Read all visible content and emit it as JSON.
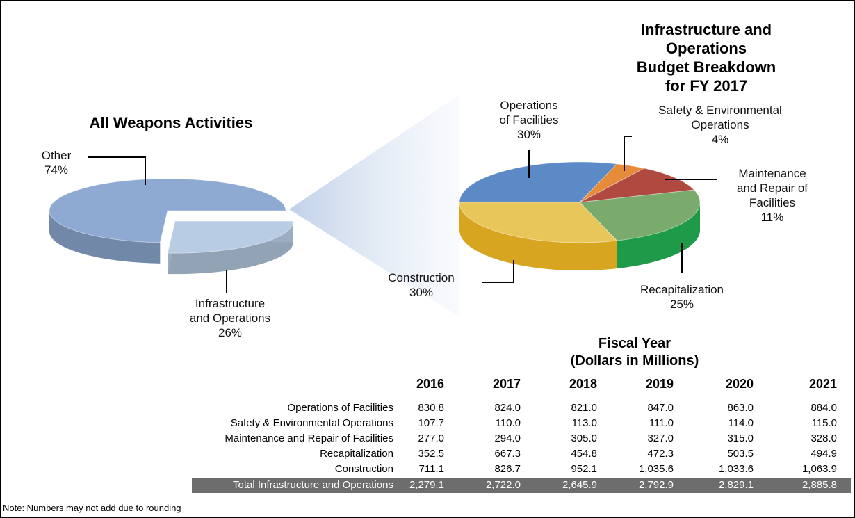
{
  "chart_data": [
    {
      "type": "pie",
      "title": "All Weapons Activities",
      "categories": [
        "Other",
        "Infrastructure\nand Operations"
      ],
      "values": [
        74,
        26
      ],
      "value_labels": [
        "74%",
        "26%"
      ],
      "colors": [
        "#8eaad3",
        "#b8cce4"
      ],
      "explode": [
        0,
        1
      ]
    },
    {
      "type": "pie",
      "title": "Infrastructure and Operations\nBudget Breakdown\nfor FY 2017",
      "categories": [
        "Operations\nof Facilities",
        "Safety & Environmental\nOperations",
        "Maintenance\nand Repair of\nFacilities",
        "Recapitalization",
        "Construction"
      ],
      "values": [
        30,
        4,
        11,
        25,
        30
      ],
      "value_labels": [
        "30%",
        "4%",
        "11%",
        "25%",
        "30%"
      ],
      "colors": [
        "#5b8ac6",
        "#e58b3a",
        "#b04a40",
        "#7aab6c",
        "#e8c65a"
      ],
      "explode": [
        0,
        0,
        0,
        0,
        0
      ]
    }
  ],
  "table": {
    "title": "Fiscal Year\n(Dollars in Millions)",
    "columns": [
      "2016",
      "2017",
      "2018",
      "2019",
      "2020",
      "2021"
    ],
    "rows": [
      [
        "Operations of Facilities",
        "830.8",
        "824.0",
        "821.0",
        "847.0",
        "863.0",
        "884.0"
      ],
      [
        "Safety & Environmental Operations",
        "107.7",
        "110.0",
        "113.0",
        "111.0",
        "114.0",
        "115.0"
      ],
      [
        "Maintenance and Repair of Facilities",
        "277.0",
        "294.0",
        "305.0",
        "327.0",
        "315.0",
        "328.0"
      ],
      [
        "Recapitalization",
        "352.5",
        "667.3",
        "454.8",
        "472.3",
        "503.5",
        "494.9"
      ],
      [
        "Construction",
        "711.1",
        "826.7",
        "952.1",
        "1,035.6",
        "1,033.6",
        "1,063.9"
      ]
    ],
    "total": [
      "Total Infrastructure and Operations",
      "2,279.1",
      "2,722.0",
      "2,645.9",
      "2,792.9",
      "2,829.1",
      "2,885.8"
    ]
  },
  "note": "Note: Numbers may not add due to rounding"
}
